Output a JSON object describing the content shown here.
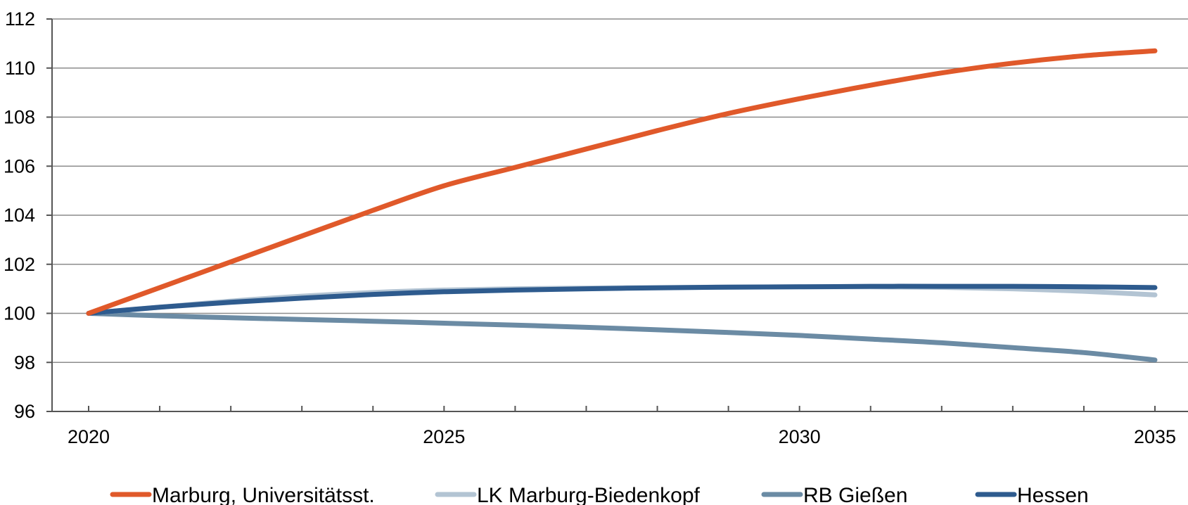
{
  "chart_data": {
    "type": "line",
    "title": "",
    "xlabel": "",
    "ylabel": "",
    "x": [
      2020,
      2021,
      2022,
      2023,
      2024,
      2025,
      2026,
      2027,
      2028,
      2029,
      2030,
      2031,
      2032,
      2033,
      2034,
      2035
    ],
    "x_tick_labels": [
      "2020",
      "2025",
      "2030",
      "2035"
    ],
    "y_tick_labels": [
      "96",
      "98",
      "100",
      "102",
      "104",
      "106",
      "108",
      "110",
      "112"
    ],
    "ylim": [
      96,
      112
    ],
    "xlim": [
      2020,
      2035
    ],
    "grid": "horizontal",
    "legend_position": "bottom",
    "series": [
      {
        "name": "Marburg, Universitätsst.",
        "color": "#E0592A",
        "values": [
          100.0,
          101.05,
          102.1,
          103.15,
          104.2,
          105.2,
          105.95,
          106.7,
          107.45,
          108.15,
          108.75,
          109.3,
          109.8,
          110.2,
          110.5,
          110.7
        ]
      },
      {
        "name": "LK Marburg-Biedenkopf",
        "color": "#B3C4D3",
        "values": [
          100.0,
          100.25,
          100.5,
          100.7,
          100.85,
          100.95,
          101.0,
          101.03,
          101.05,
          101.07,
          101.08,
          101.08,
          101.06,
          101.0,
          100.9,
          100.75
        ]
      },
      {
        "name": "RB Gießen",
        "color": "#6B8BA4",
        "values": [
          100.0,
          99.9,
          99.82,
          99.75,
          99.68,
          99.6,
          99.52,
          99.43,
          99.33,
          99.22,
          99.1,
          98.95,
          98.8,
          98.6,
          98.4,
          98.1
        ]
      },
      {
        "name": "Hessen",
        "color": "#2E5B8E",
        "values": [
          100.0,
          100.25,
          100.45,
          100.62,
          100.77,
          100.88,
          100.95,
          101.0,
          101.04,
          101.07,
          101.08,
          101.1,
          101.1,
          101.1,
          101.08,
          101.05
        ]
      }
    ]
  }
}
